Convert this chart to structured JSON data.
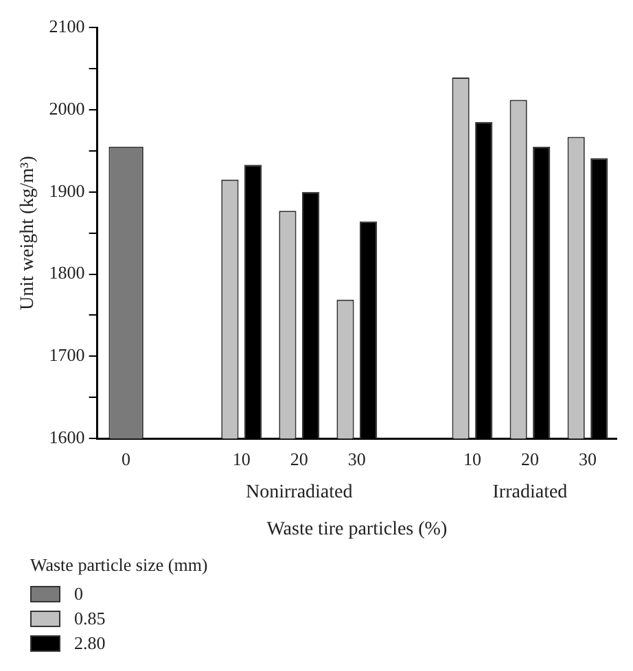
{
  "chart_data": {
    "type": "bar",
    "xlabel": "Waste tire particles (%)",
    "ylabel": "Unit weight (kg/m³)",
    "legend_title": "Waste particle size (mm)",
    "legend": "bottom",
    "grid": false,
    "categories": [
      "0",
      null,
      "10",
      "20",
      "30",
      null,
      "10",
      "20",
      "30"
    ],
    "annotations": [
      "Nonirradiated",
      "Irradiated"
    ],
    "ylim": [
      1600,
      2100
    ],
    "yticks": [
      1600,
      {
        "value": 1650,
        "label": null
      },
      1700,
      {
        "value": 1750,
        "label": null
      },
      1800,
      {
        "value": 1850,
        "label": null
      },
      1900,
      {
        "value": 1950,
        "label": null
      },
      2000,
      {
        "value": 2050,
        "label": null
      },
      2100
    ],
    "series": [
      {
        "name": "0",
        "color": "#7a7a7a",
        "values": [
          1955,
          null,
          null,
          null,
          null,
          null,
          null,
          null,
          null
        ]
      },
      {
        "name": "0.85",
        "color": "#c0c0c0",
        "values": [
          null,
          null,
          1915,
          1877,
          1769,
          null,
          2039,
          2012,
          1967
        ]
      },
      {
        "name": "2.80",
        "color": "#000000",
        "values": [
          null,
          null,
          1933,
          1900,
          1864,
          null,
          1985,
          1955,
          1941
        ]
      }
    ]
  }
}
